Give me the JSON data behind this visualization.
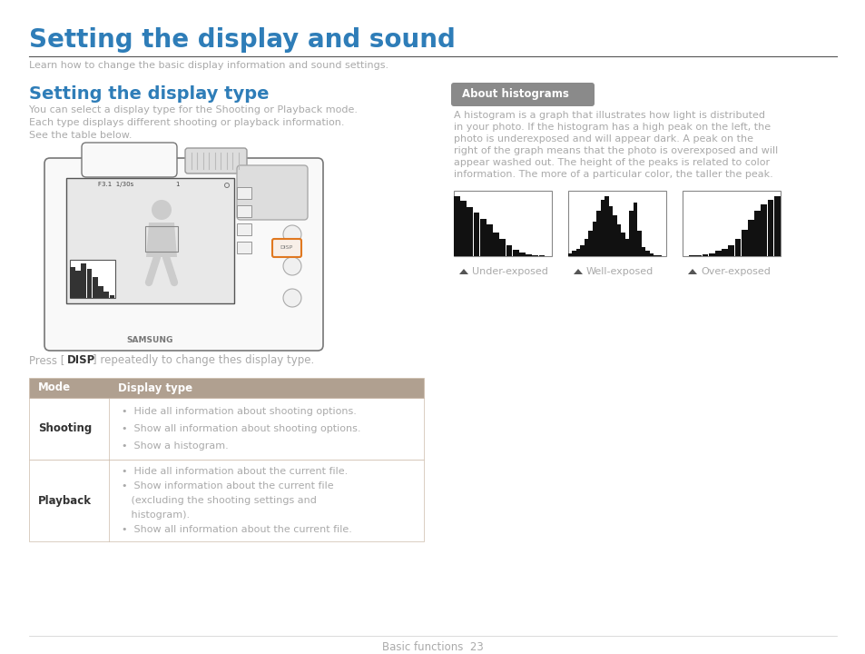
{
  "bg_color": "#ffffff",
  "main_title": "Setting the display and sound",
  "main_title_color": "#2e7db8",
  "subtitle": "Learn how to change the basic display information and sound settings.",
  "subtitle_color": "#aaaaaa",
  "section1_title": "Setting the display type",
  "section1_title_color": "#2e7db8",
  "section1_body": "You can select a display type for the Shooting or Playback mode.\nEach type displays different shooting or playback information.\nSee the table below.",
  "section1_body_color": "#aaaaaa",
  "about_hist_label": "About histograms",
  "about_hist_bg": "#8a8a8a",
  "about_hist_fg": "#ffffff",
  "hist_body_lines": [
    "A histogram is a graph that illustrates how light is distributed",
    "in your photo. If the histogram has a high peak on the left, the",
    "photo is underexposed and will appear dark. A peak on the",
    "right of the graph means that the photo is overexposed and will",
    "appear washed out. The height of the peaks is related to color",
    "information. The more of a particular color, the taller the peak."
  ],
  "hist_body_color": "#aaaaaa",
  "hist_labels": [
    "Under-exposed",
    "Well-exposed",
    "Over-exposed"
  ],
  "hist_label_color": "#aaaaaa",
  "table_header_bg": "#b0a090",
  "table_header_color": "#ffffff",
  "table_border_color": "#ccbbaa",
  "table_mode_color": "#333333",
  "table_text_color": "#aaaaaa",
  "footer_text": "Basic functions  23",
  "footer_color": "#aaaaaa",
  "disp_text_color": "#aaaaaa",
  "under_hist": [
    0.95,
    0.88,
    0.78,
    0.7,
    0.6,
    0.5,
    0.38,
    0.28,
    0.18,
    0.1,
    0.06,
    0.03,
    0.02,
    0.01,
    0.005
  ],
  "well_hist": [
    0.05,
    0.08,
    0.12,
    0.18,
    0.28,
    0.4,
    0.55,
    0.72,
    0.9,
    0.95,
    0.8,
    0.65,
    0.5,
    0.38,
    0.28,
    0.72,
    0.85,
    0.4,
    0.15,
    0.08,
    0.05,
    0.02,
    0.01,
    0.005
  ],
  "over_hist": [
    0.005,
    0.01,
    0.02,
    0.03,
    0.05,
    0.08,
    0.12,
    0.18,
    0.28,
    0.42,
    0.58,
    0.72,
    0.82,
    0.9,
    0.96
  ]
}
